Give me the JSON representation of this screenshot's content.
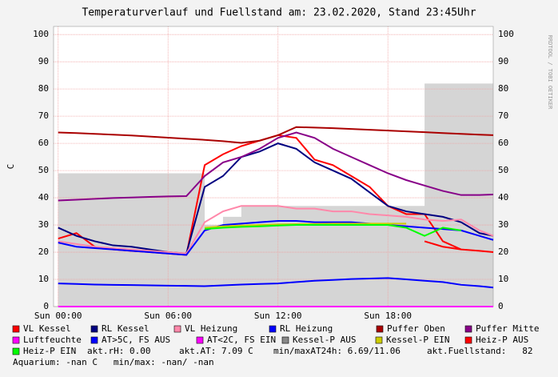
{
  "chart_data": {
    "type": "line",
    "title": "Temperaturverlauf und Fuellstand am: 23.02.2020, Stand 23:45Uhr",
    "y_label": "C",
    "watermark": "RRDTOOL / TOBI OETIKER",
    "x": [
      0,
      1,
      2,
      3,
      4,
      5,
      6,
      7,
      8,
      9,
      10,
      11,
      12,
      13,
      14,
      15,
      16,
      17,
      18,
      19,
      20,
      21,
      22,
      23,
      23.75
    ],
    "xlim": [
      -0.25,
      23.75
    ],
    "xticks": [
      {
        "value": 0,
        "label": "Sun 00:00"
      },
      {
        "value": 6,
        "label": "Sun 06:00"
      },
      {
        "value": 12,
        "label": "Sun 12:00"
      },
      {
        "value": 18,
        "label": "Sun 18:00"
      }
    ],
    "ylim": [
      0,
      103
    ],
    "yticks": [
      0,
      10,
      20,
      30,
      40,
      50,
      60,
      70,
      80,
      90,
      100
    ],
    "grid": true,
    "series": [
      {
        "name": "VL Kessel",
        "color": "#ff0000",
        "values": [
          25,
          27,
          22,
          21,
          20.5,
          20,
          19.5,
          19,
          52,
          56,
          59,
          61,
          63,
          62,
          54,
          52,
          48,
          44,
          37,
          34,
          34,
          24,
          21,
          20.5,
          20
        ]
      },
      {
        "name": "RL Kessel",
        "color": "#000080",
        "values": [
          29,
          26,
          24,
          22.5,
          22,
          21,
          20,
          19.5,
          44,
          48,
          55,
          57,
          60,
          58,
          53,
          50,
          47,
          42,
          37,
          35,
          34,
          33,
          31,
          27,
          26
        ]
      },
      {
        "name": "VL Heizung",
        "color": "#ff88aa",
        "values": [
          24,
          23,
          22,
          21.5,
          21,
          20.5,
          20,
          19.5,
          31,
          35,
          37,
          37,
          37,
          36,
          36,
          35,
          35,
          34,
          33.5,
          33,
          32,
          31.5,
          32,
          28,
          26
        ]
      },
      {
        "name": "RL Heizung",
        "color": "#0000ff",
        "values": [
          23.5,
          22,
          21.5,
          21,
          20.5,
          20,
          19.5,
          19,
          28,
          30,
          30.5,
          31,
          31.5,
          31.5,
          31,
          31,
          31,
          30.5,
          30,
          29.5,
          29,
          28.5,
          28,
          26,
          24.5
        ]
      },
      {
        "name": "Puffer Oben",
        "color": "#aa0000",
        "values": [
          64,
          63.8,
          63.5,
          63.2,
          62.9,
          62.5,
          62.1,
          61.7,
          61.3,
          60.8,
          60.2,
          61,
          63,
          66,
          65.8,
          65.6,
          65.3,
          65,
          64.7,
          64.4,
          64.1,
          63.8,
          63.5,
          63.2,
          63
        ]
      },
      {
        "name": "Puffer Mitte",
        "color": "#880088",
        "values": [
          39,
          39.3,
          39.6,
          39.9,
          40.1,
          40.3,
          40.5,
          40.6,
          48,
          53,
          55,
          58,
          62,
          64,
          62,
          58,
          55,
          52,
          49,
          46.5,
          44.5,
          42.5,
          41,
          41,
          41.2
        ]
      },
      {
        "name": "Luftfeuchte",
        "color": "#ff00ff",
        "values": [
          0,
          0,
          0,
          0,
          0,
          0,
          0,
          0,
          0,
          0,
          0,
          0,
          0,
          0,
          0,
          0,
          0,
          0,
          0,
          0,
          0,
          0,
          0,
          0,
          0
        ]
      },
      {
        "name": "AT>5C, FS AUS",
        "color": "#0000ff",
        "values": [
          8.5,
          8.3,
          8.1,
          8,
          7.9,
          7.8,
          7.7,
          7.6,
          7.5,
          7.8,
          8.1,
          8.3,
          8.5,
          9,
          9.5,
          9.8,
          10.1,
          10.3,
          10.5,
          10,
          9.5,
          9,
          8,
          7.5,
          7
        ]
      },
      {
        "name": "AT<2C, FS EIN",
        "color": "#ff00ff",
        "values": [
          null,
          null,
          null,
          null,
          null,
          null,
          null,
          null,
          null,
          null,
          null,
          null,
          null,
          null,
          null,
          null,
          null,
          null,
          null,
          null,
          null,
          null,
          null,
          null,
          null
        ]
      },
      {
        "name": "Kessel-P AUS",
        "color": "#888888",
        "area": true,
        "values": [
          49,
          49,
          49,
          49,
          49,
          49,
          49,
          49,
          30,
          33,
          37,
          37,
          37,
          37,
          37,
          37,
          37,
          37,
          37,
          37,
          82,
          82,
          82,
          82,
          82
        ]
      },
      {
        "name": "Kessel-P EIN",
        "color": "#cccc00",
        "values": [
          null,
          null,
          null,
          null,
          null,
          null,
          null,
          null,
          29,
          29.5,
          29.8,
          30,
          30.2,
          30.3,
          30.4,
          30.5,
          30.5,
          30.5,
          30.5,
          30.5,
          null,
          null,
          null,
          null,
          null
        ]
      },
      {
        "name": "Heiz-P AUS",
        "color": "#ff0000",
        "values": [
          null,
          null,
          null,
          null,
          null,
          null,
          null,
          null,
          null,
          null,
          null,
          null,
          null,
          null,
          null,
          null,
          null,
          null,
          null,
          null,
          24,
          22,
          21,
          null,
          null
        ]
      },
      {
        "name": "Heiz-P EIN",
        "color": "#00ff00",
        "values": [
          null,
          null,
          null,
          null,
          null,
          null,
          null,
          null,
          28.5,
          29,
          29.3,
          29.5,
          29.8,
          30,
          30,
          30,
          30,
          30,
          30,
          29,
          26,
          29,
          28,
          null,
          null
        ]
      }
    ],
    "notes": [
      "akt.rH: 0.00",
      "akt.AT: 7.09 C",
      "min/maxAT24h: 6.69/11.06",
      "akt.Fuellstand:   82",
      "Aquarium: -nan C   min/max: -nan/ -nan"
    ]
  }
}
